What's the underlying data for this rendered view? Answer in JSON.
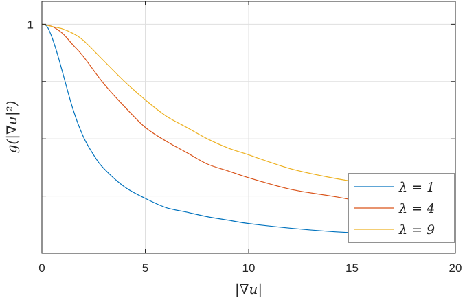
{
  "chart_data": {
    "type": "line",
    "xlabel": "|∇u|",
    "ylabel": "g(|∇u|²)",
    "xlim": [
      0,
      20
    ],
    "ylim": [
      0.0,
      1.1
    ],
    "xticks": [
      0,
      5,
      10,
      15,
      20
    ],
    "xtick_labels": [
      "0",
      "5",
      "10",
      "15",
      "20"
    ],
    "yticks": [
      0.25,
      0.5,
      0.75,
      1.0
    ],
    "ytick_labels": [
      "",
      "",
      "",
      "1"
    ],
    "grid": true,
    "legend_position": "bottom-right",
    "series": [
      {
        "name": "λ = 1",
        "color": "#0072BD",
        "x": [
          0,
          0.25,
          0.5,
          0.75,
          1,
          1.5,
          2,
          2.5,
          3,
          4,
          5,
          6,
          7,
          8,
          9,
          10,
          12,
          14,
          16,
          18,
          20
        ],
        "y": [
          1.0,
          0.99,
          0.94,
          0.87,
          0.79,
          0.63,
          0.51,
          0.43,
          0.37,
          0.29,
          0.24,
          0.2,
          0.18,
          0.16,
          0.145,
          0.13,
          0.11,
          0.095,
          0.085,
          0.075,
          0.067
        ]
      },
      {
        "name": "λ = 4",
        "color": "#D95319",
        "x": [
          0,
          0.5,
          1,
          1.5,
          2,
          3,
          4,
          5,
          6,
          7,
          8,
          9,
          10,
          12,
          14,
          16,
          18,
          20
        ],
        "y": [
          1.0,
          0.99,
          0.96,
          0.91,
          0.86,
          0.74,
          0.64,
          0.55,
          0.49,
          0.44,
          0.39,
          0.36,
          0.33,
          0.28,
          0.25,
          0.22,
          0.2,
          0.18
        ]
      },
      {
        "name": "λ = 9",
        "color": "#EDB120",
        "x": [
          0,
          0.5,
          1,
          1.5,
          2,
          3,
          4,
          5,
          6,
          7,
          8,
          9,
          10,
          12,
          14,
          16,
          18,
          20
        ],
        "y": [
          1.0,
          0.99,
          0.98,
          0.96,
          0.93,
          0.84,
          0.75,
          0.67,
          0.6,
          0.55,
          0.5,
          0.46,
          0.43,
          0.37,
          0.33,
          0.3,
          0.27,
          0.25
        ]
      }
    ]
  }
}
